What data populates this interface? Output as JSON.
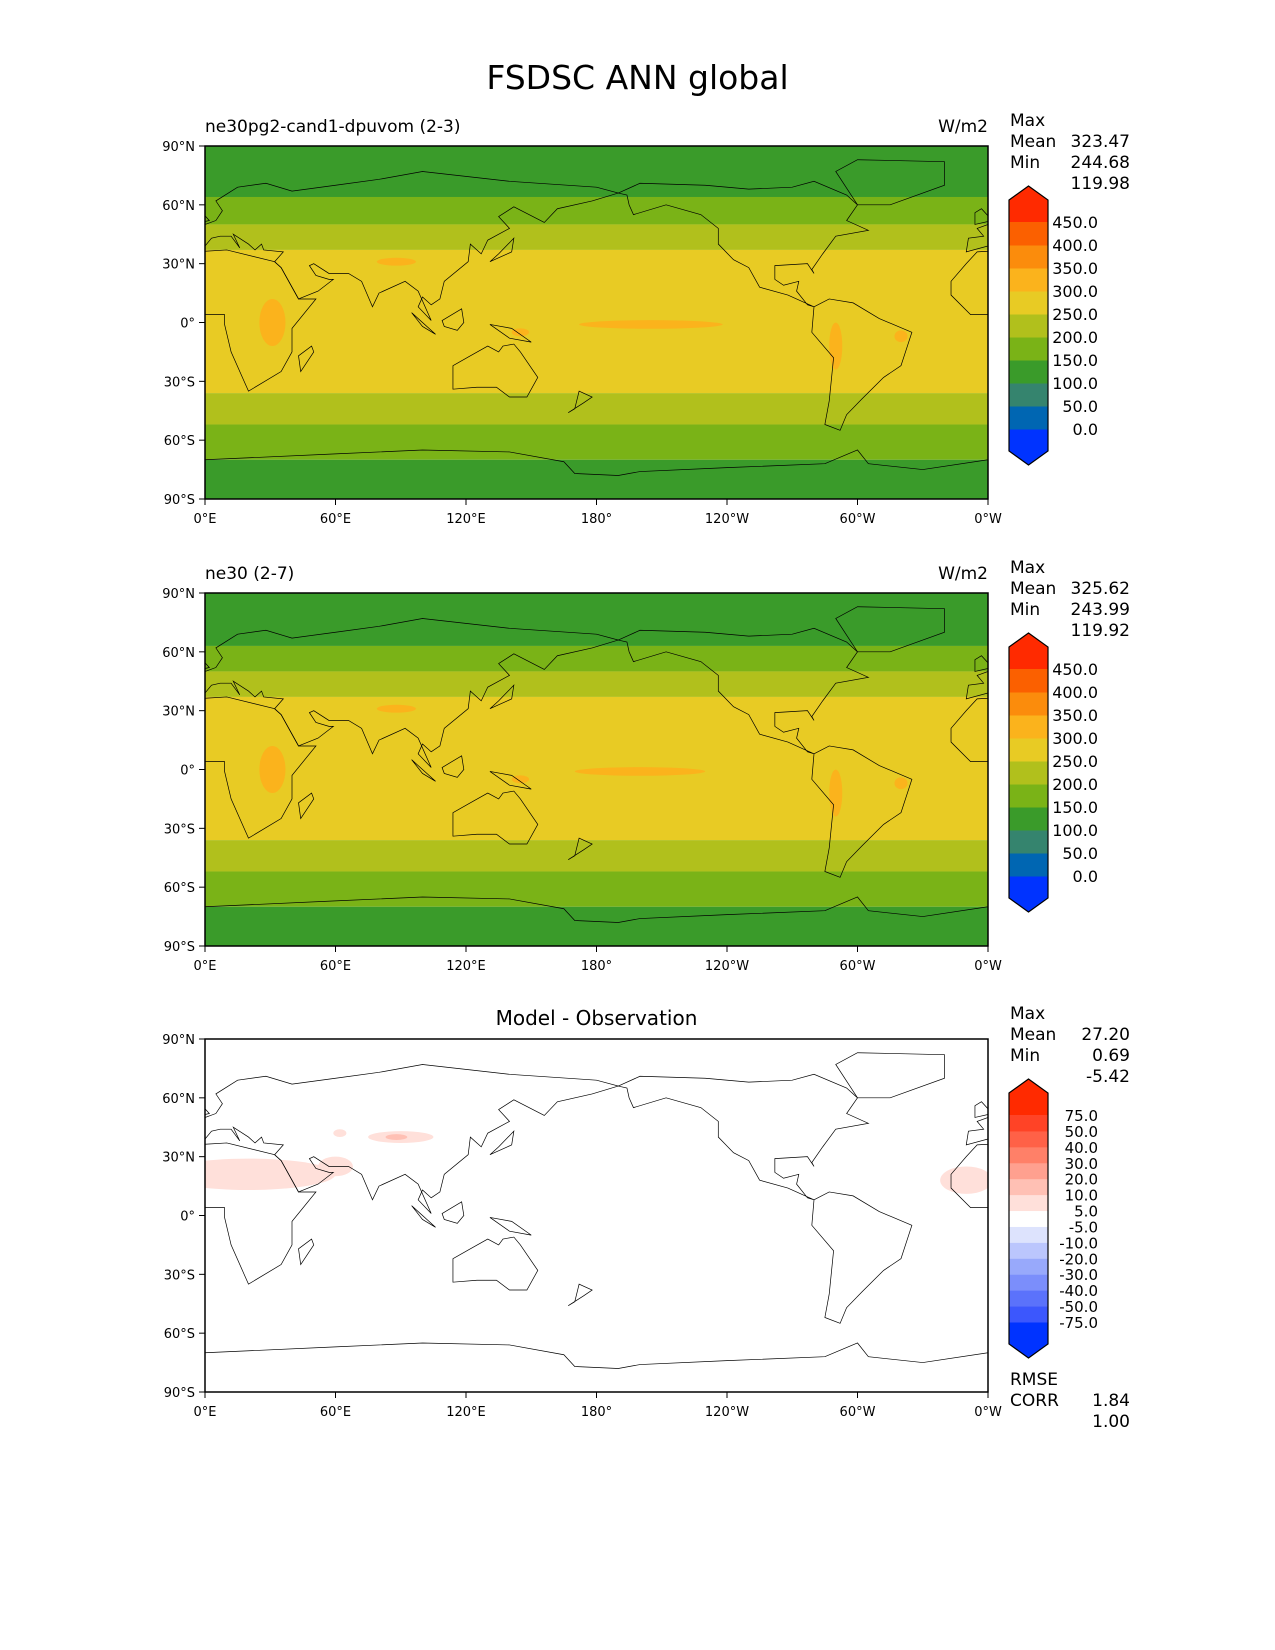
{
  "title": "FSDSC ANN global",
  "axes": {
    "lat_ticks": [
      "90°N",
      "60°N",
      "30°N",
      "0°",
      "30°S",
      "60°S",
      "90°S"
    ],
    "lat_values": [
      90,
      60,
      30,
      0,
      -30,
      -60,
      -90
    ],
    "lon_ticks": [
      "0°E",
      "60°E",
      "120°E",
      "180°",
      "120°W",
      "60°W",
      "0°W"
    ],
    "lon_values": [
      0,
      60,
      120,
      180,
      240,
      300,
      360
    ]
  },
  "colors": {
    "orange": "#fbb31c",
    "yellow": "#e8cb24",
    "olive": "#b1c01c",
    "lightgreen": "#7ab317",
    "green": "#3a9b2a",
    "diffpink": "#ffe0da",
    "diffpink2": "#ffc0b4",
    "coast": "#000000"
  },
  "panels": [
    {
      "left_title": "ne30pg2-cand1-dpuvom (2-3)",
      "center_title": "",
      "units": "W/m2",
      "stats": [
        {
          "label": "Max",
          "value": "323.47"
        },
        {
          "label": "Mean",
          "value": "244.68"
        },
        {
          "label": "Min",
          "value": "119.98"
        }
      ],
      "bottom_stats": [],
      "colorbar": {
        "labels": [
          "0.0",
          "50.0",
          "100.0",
          "150.0",
          "200.0",
          "250.0",
          "300.0",
          "350.0",
          "400.0",
          "450.0"
        ],
        "colors": [
          "#0033ff",
          "#0066b2",
          "#35846e",
          "#3a9b2a",
          "#7ab317",
          "#b1c01c",
          "#e8cb24",
          "#fbb31c",
          "#fb8c0c",
          "#fb6000",
          "#ff2a00"
        ]
      },
      "bands": [
        {
          "lat": [
            64,
            90
          ],
          "color": "#3a9b2a"
        },
        {
          "lat": [
            50,
            64
          ],
          "color": "#7ab317"
        },
        {
          "lat": [
            37,
            50
          ],
          "color": "#b1c01c"
        },
        {
          "lat": [
            -36,
            37
          ],
          "color": "#e8cb24"
        },
        {
          "lat": [
            -52,
            -36
          ],
          "color": "#b1c01c"
        },
        {
          "lat": [
            -70,
            -52
          ],
          "color": "#7ab317"
        },
        {
          "lat": [
            -90,
            -70
          ],
          "color": "#3a9b2a"
        }
      ],
      "blobs": [
        {
          "lon": 205,
          "lat": -1,
          "rlon": 33,
          "rlat": 2.2,
          "color": "#fbb31c"
        },
        {
          "lon": 31,
          "lat": 0,
          "rlon": 6,
          "rlat": 12,
          "color": "#fbb31c"
        },
        {
          "lon": 88,
          "lat": 31,
          "rlon": 9,
          "rlat": 2,
          "color": "#fbb31c"
        },
        {
          "lon": 290,
          "lat": -12,
          "rlon": 3,
          "rlat": 12,
          "color": "#fbb31c"
        },
        {
          "lon": 320,
          "lat": -7,
          "rlon": 3,
          "rlat": 3,
          "color": "#fbb31c"
        },
        {
          "lon": 145,
          "lat": -5,
          "rlon": 4,
          "rlat": 2,
          "color": "#fbb31c"
        }
      ]
    },
    {
      "left_title": "ne30 (2-7)",
      "center_title": "",
      "units": "W/m2",
      "stats": [
        {
          "label": "Max",
          "value": "325.62"
        },
        {
          "label": "Mean",
          "value": "243.99"
        },
        {
          "label": "Min",
          "value": "119.92"
        }
      ],
      "bottom_stats": [],
      "colorbar": {
        "labels": [
          "0.0",
          "50.0",
          "100.0",
          "150.0",
          "200.0",
          "250.0",
          "300.0",
          "350.0",
          "400.0",
          "450.0"
        ],
        "colors": [
          "#0033ff",
          "#0066b2",
          "#35846e",
          "#3a9b2a",
          "#7ab317",
          "#b1c01c",
          "#e8cb24",
          "#fbb31c",
          "#fb8c0c",
          "#fb6000",
          "#ff2a00"
        ]
      },
      "bands": [
        {
          "lat": [
            63,
            90
          ],
          "color": "#3a9b2a"
        },
        {
          "lat": [
            50,
            63
          ],
          "color": "#7ab317"
        },
        {
          "lat": [
            37,
            50
          ],
          "color": "#b1c01c"
        },
        {
          "lat": [
            -36,
            37
          ],
          "color": "#e8cb24"
        },
        {
          "lat": [
            -52,
            -36
          ],
          "color": "#b1c01c"
        },
        {
          "lat": [
            -70,
            -52
          ],
          "color": "#7ab317"
        },
        {
          "lat": [
            -90,
            -70
          ],
          "color": "#3a9b2a"
        }
      ],
      "blobs": [
        {
          "lon": 200,
          "lat": -1,
          "rlon": 30,
          "rlat": 2.2,
          "color": "#fbb31c"
        },
        {
          "lon": 31,
          "lat": 0,
          "rlon": 6,
          "rlat": 12,
          "color": "#fbb31c"
        },
        {
          "lon": 88,
          "lat": 31,
          "rlon": 9,
          "rlat": 2,
          "color": "#fbb31c"
        },
        {
          "lon": 290,
          "lat": -12,
          "rlon": 3,
          "rlat": 12,
          "color": "#fbb31c"
        },
        {
          "lon": 320,
          "lat": -7,
          "rlon": 3,
          "rlat": 3,
          "color": "#fbb31c"
        },
        {
          "lon": 145,
          "lat": -5,
          "rlon": 4,
          "rlat": 2,
          "color": "#fbb31c"
        }
      ]
    },
    {
      "left_title": "",
      "center_title": "Model - Observation",
      "units": "",
      "stats": [
        {
          "label": "Max",
          "value": "27.20"
        },
        {
          "label": "Mean",
          "value": "0.69"
        },
        {
          "label": "Min",
          "value": "-5.42"
        }
      ],
      "bottom_stats": [
        {
          "label": "RMSE",
          "value": "1.84"
        },
        {
          "label": "CORR",
          "value": "1.00"
        }
      ],
      "colorbar": {
        "labels": [
          "-75.0",
          "-50.0",
          "-40.0",
          "-30.0",
          "-20.0",
          "-10.0",
          "-5.0",
          "5.0",
          "10.0",
          "20.0",
          "30.0",
          "40.0",
          "50.0",
          "75.0"
        ],
        "colors": [
          "#0033ff",
          "#3c57fd",
          "#5b72fb",
          "#7b8efb",
          "#98a9fb",
          "#bbc6fd",
          "#dde3fd",
          "#ffffff",
          "#ffe0da",
          "#ffc0b4",
          "#ffa08f",
          "#ff8068",
          "#ff6147",
          "#ff4326",
          "#ff2a00"
        ]
      },
      "bands": [
        {
          "lat": [
            -90,
            90
          ],
          "color": "#ffffff"
        }
      ],
      "blobs": [
        {
          "lon": 20,
          "lat": 21,
          "rlon": 40,
          "rlat": 8,
          "color": "#ffe0da"
        },
        {
          "lon": 350,
          "lat": 18,
          "rlon": 12,
          "rlat": 7,
          "color": "#ffe0da"
        },
        {
          "lon": 90,
          "lat": 40,
          "rlon": 15,
          "rlat": 3,
          "color": "#ffe0da"
        },
        {
          "lon": 88,
          "lat": 40,
          "rlon": 5,
          "rlat": 1.5,
          "color": "#ffc0b4"
        },
        {
          "lon": 60,
          "lat": 25,
          "rlon": 8,
          "rlat": 5,
          "color": "#ffe0da"
        },
        {
          "lon": 62,
          "lat": 42,
          "rlon": 3,
          "rlat": 2,
          "color": "#ffe0da"
        }
      ]
    }
  ]
}
